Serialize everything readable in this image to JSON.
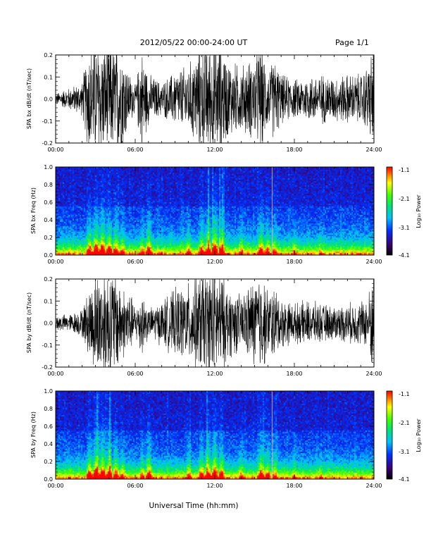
{
  "header": {
    "title": "2012/05/22  00:00-24:00 UT",
    "page": "Page 1/1"
  },
  "xlabel": "Universal Time (hh:mm)",
  "colorbar_label": "Log₁₀ Power",
  "colorbar_ticks": [
    "-1.1",
    "-2.1",
    "-3.1",
    "-4.1"
  ],
  "x_ticks": [
    "00:00",
    "06:00",
    "12:00",
    "18:00",
    "24:00"
  ],
  "chart_data": [
    {
      "type": "line",
      "ylabel": "SPA bx dB/dt (nT/sec)",
      "xlim": [
        0,
        24
      ],
      "ylim": [
        -0.2,
        0.2
      ],
      "y_ticks": [
        "0.2",
        "0.1",
        "0.0",
        "-0.1",
        "-0.2"
      ],
      "x_hours": [
        0,
        1,
        2,
        2.5,
        3,
        3.5,
        4,
        4.5,
        5,
        5.5,
        6,
        6.5,
        7,
        8,
        9,
        10,
        11,
        11.5,
        12,
        12.5,
        13,
        14,
        15,
        15.5,
        16,
        16.5,
        17,
        18,
        19,
        20,
        21,
        22,
        23,
        23.5,
        24
      ],
      "amplitude": [
        0.02,
        0.04,
        0.06,
        0.2,
        0.2,
        0.2,
        0.2,
        0.2,
        0.2,
        0.1,
        0.05,
        0.18,
        0.09,
        0.06,
        0.1,
        0.12,
        0.2,
        0.2,
        0.2,
        0.2,
        0.14,
        0.12,
        0.15,
        0.2,
        0.1,
        0.15,
        0.09,
        0.07,
        0.08,
        0.09,
        0.08,
        0.09,
        0.09,
        0.12,
        0.2
      ]
    },
    {
      "type": "heatmap",
      "ylabel": "SPA bx Freq (Hz)",
      "xlim": [
        0,
        24
      ],
      "ylim": [
        0,
        1
      ],
      "zlim": [
        -4.1,
        -1.1
      ],
      "y_ticks": [
        "1.0",
        "0.8",
        "0.6",
        "0.4",
        "0.2",
        "0.0"
      ],
      "activity_hours": [
        1,
        2.5,
        3,
        3.5,
        4,
        4.5,
        5,
        6.5,
        7,
        10,
        11,
        11.5,
        12,
        12.5,
        14,
        15.5,
        16,
        16.5,
        18,
        20
      ],
      "activity_level": [
        0.35,
        0.8,
        0.95,
        1.0,
        0.9,
        0.75,
        0.6,
        0.55,
        0.8,
        0.55,
        0.75,
        0.85,
        1.0,
        0.8,
        0.55,
        0.8,
        0.65,
        0.55,
        0.45,
        0.4
      ]
    },
    {
      "type": "line",
      "ylabel": "SPA by dB/dt (nT/sec)",
      "xlim": [
        0,
        24
      ],
      "ylim": [
        -0.2,
        0.2
      ],
      "y_ticks": [
        "0.2",
        "0.1",
        "0.0",
        "-0.1",
        "-0.2"
      ],
      "x_hours": [
        0,
        1,
        2,
        2.5,
        3,
        3.5,
        4,
        4.5,
        5,
        5.5,
        6,
        6.5,
        7,
        8,
        9,
        10,
        11,
        11.5,
        12,
        12.5,
        13,
        14,
        15,
        15.5,
        16,
        16.5,
        17,
        18,
        19,
        20,
        21,
        22,
        23,
        23.5,
        24
      ],
      "amplitude": [
        0.03,
        0.03,
        0.05,
        0.12,
        0.18,
        0.2,
        0.2,
        0.2,
        0.13,
        0.12,
        0.06,
        0.12,
        0.05,
        0.08,
        0.12,
        0.14,
        0.18,
        0.2,
        0.2,
        0.18,
        0.13,
        0.1,
        0.16,
        0.18,
        0.12,
        0.13,
        0.09,
        0.07,
        0.08,
        0.07,
        0.06,
        0.07,
        0.08,
        0.09,
        0.2
      ]
    },
    {
      "type": "heatmap",
      "ylabel": "SPA by Freq (Hz)",
      "xlim": [
        0,
        24
      ],
      "ylim": [
        0,
        1
      ],
      "zlim": [
        -4.1,
        -1.1
      ],
      "y_ticks": [
        "1.0",
        "0.8",
        "0.6",
        "0.4",
        "0.2",
        "0.0"
      ],
      "activity_hours": [
        1,
        2.5,
        3,
        3.5,
        4,
        4.5,
        5,
        6.5,
        7,
        10,
        11,
        11.5,
        12,
        12.5,
        14,
        15.5,
        16,
        16.5,
        18,
        20
      ],
      "activity_level": [
        0.35,
        0.8,
        0.95,
        1.0,
        0.9,
        0.75,
        0.6,
        0.55,
        0.8,
        0.55,
        0.75,
        0.85,
        1.0,
        0.8,
        0.55,
        0.8,
        0.65,
        0.55,
        0.45,
        0.4
      ]
    }
  ]
}
